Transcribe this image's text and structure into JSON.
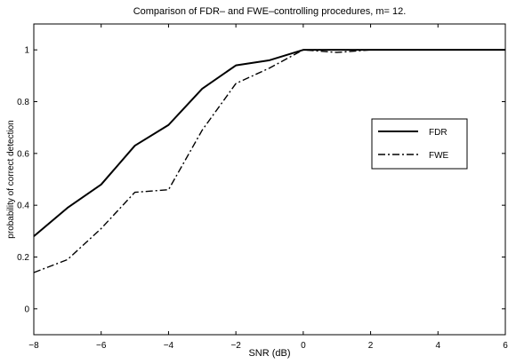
{
  "chart_data": {
    "type": "line",
    "title": "Comparison of FDR– and FWE–controlling procedures, m= 12.",
    "xlabel": "SNR (dB)",
    "ylabel": "probability of correct detection",
    "xlim": [
      -8,
      6
    ],
    "ylim": [
      -0.1,
      1.1
    ],
    "xticks": [
      -8,
      -6,
      -4,
      -2,
      0,
      2,
      4,
      6
    ],
    "xtick_labels": [
      "−8",
      "−6",
      "−4",
      "−2",
      "0",
      "2",
      "4",
      "6"
    ],
    "yticks": [
      0,
      0.2,
      0.4,
      0.6,
      0.8,
      1
    ],
    "ytick_labels": [
      "0",
      "0.2",
      "0.4",
      "0.6",
      "0.8",
      "1"
    ],
    "grid": false,
    "legend_position": "right",
    "series": [
      {
        "name": "FDR",
        "style": "solid",
        "color": "#000000",
        "x": [
          -8,
          -7,
          -6,
          -5,
          -4,
          -3,
          -2,
          -1,
          0,
          1,
          2,
          3,
          4,
          5,
          6
        ],
        "y": [
          0.28,
          0.39,
          0.48,
          0.63,
          0.71,
          0.85,
          0.94,
          0.96,
          1.0,
          1.0,
          1.0,
          1.0,
          1.0,
          1.0,
          1.0
        ]
      },
      {
        "name": "FWE",
        "style": "dashdot",
        "color": "#000000",
        "x": [
          -8,
          -7,
          -6,
          -5,
          -4,
          -3,
          -2,
          -1,
          0,
          1,
          2,
          3,
          4,
          5,
          6
        ],
        "y": [
          0.14,
          0.19,
          0.31,
          0.45,
          0.46,
          0.69,
          0.87,
          0.93,
          1.0,
          0.99,
          1.0,
          1.0,
          1.0,
          1.0,
          1.0
        ]
      }
    ]
  }
}
